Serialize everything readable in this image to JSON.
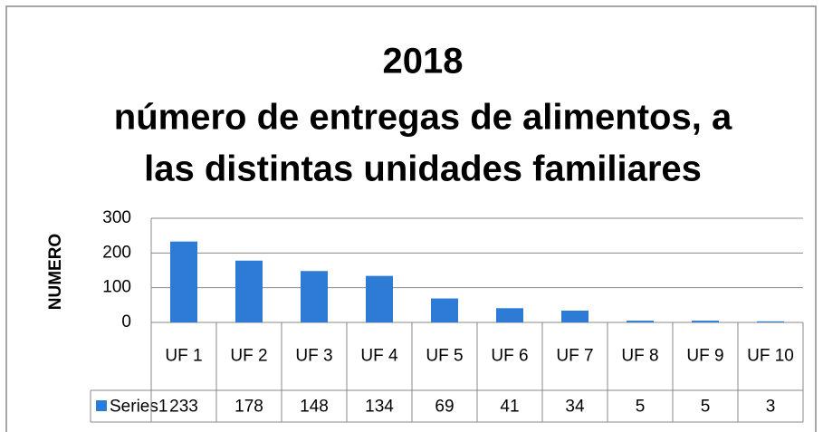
{
  "chart_data": {
    "type": "bar",
    "title": [
      "2018",
      "número de entregas de alimentos, a",
      "las distintas unidades familiares"
    ],
    "y_label": "NUMERO",
    "categories": [
      "UF 1",
      "UF 2",
      "UF 3",
      "UF 4",
      "UF 5",
      "UF 6",
      "UF 7",
      "UF 8",
      "UF 9",
      "UF 10"
    ],
    "series": [
      {
        "name": "Series1",
        "color": "#2e7bd6",
        "values": [
          233,
          178,
          148,
          134,
          69,
          41,
          34,
          5,
          5,
          3
        ]
      }
    ],
    "ylim": [
      0,
      300
    ],
    "yticks": [
      0,
      100,
      200,
      300
    ],
    "grid": true,
    "data_table": true
  }
}
